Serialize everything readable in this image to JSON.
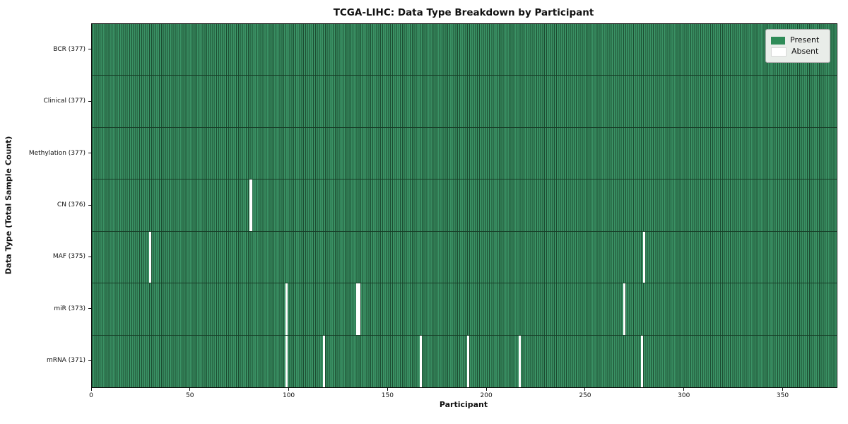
{
  "title": "TCGA-LIHC: Data Type Breakdown by Participant",
  "xlabel": "Participant",
  "ylabel": "Data Type (Total Sample Count)",
  "legend": {
    "present_label": "Present",
    "absent_label": "Absent",
    "position": "upper right"
  },
  "colors": {
    "present": "#2e8b57",
    "present_fill": "#3a9164",
    "cell_edge": "#1c4c31",
    "row_edge": "#173d27",
    "absent": "#ffffff",
    "legend_bg": "#e9ede9",
    "legend_border": "#a8a8a8"
  },
  "x_ticks": [
    0,
    50,
    100,
    150,
    200,
    250,
    300,
    350
  ],
  "chart_data": {
    "type": "heatmap",
    "title": "TCGA-LIHC: Data Type Breakdown by Participant",
    "xlabel": "Participant",
    "ylabel": "Data Type (Total Sample Count)",
    "n_participants": 377,
    "x_range": [
      0,
      377
    ],
    "grid": "cell-edges",
    "legend_entries": [
      "Present",
      "Absent"
    ],
    "legend_position": "upper right",
    "rows": [
      {
        "label": "BCR (377)",
        "data_type": "BCR",
        "total": 377,
        "absent_participants": []
      },
      {
        "label": "Clinical (377)",
        "data_type": "Clinical",
        "total": 377,
        "absent_participants": []
      },
      {
        "label": "Methylation (377)",
        "data_type": "Methylation",
        "total": 377,
        "absent_participants": []
      },
      {
        "label": "CN (376)",
        "data_type": "CN",
        "total": 376,
        "absent_participants": [
          80
        ]
      },
      {
        "label": "MAF (375)",
        "data_type": "MAF",
        "total": 375,
        "absent_participants": [
          29,
          279
        ]
      },
      {
        "label": "miR (373)",
        "data_type": "miR",
        "total": 373,
        "absent_participants": [
          98,
          134,
          135,
          269
        ]
      },
      {
        "label": "mRNA (371)",
        "data_type": "mRNA",
        "total": 371,
        "absent_participants": [
          98,
          117,
          166,
          190,
          216,
          278
        ]
      }
    ]
  }
}
